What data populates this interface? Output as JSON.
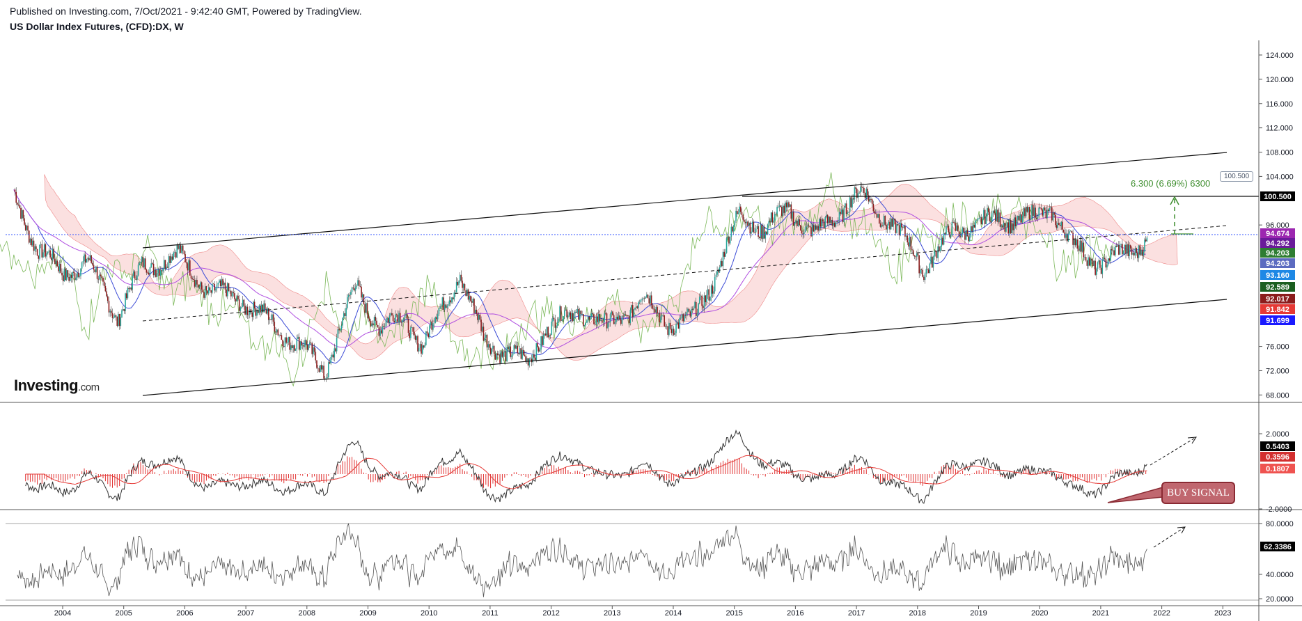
{
  "header": {
    "published": "Published on Investing.com, 7/Oct/2021 - 9:42:40 GMT, Powered by TradingView.",
    "symbol": "US Dollar Index Futures, (CFD):DX, W"
  },
  "logo": {
    "main": "Investing",
    "suffix": ".com"
  },
  "annotations": {
    "buy_signal": "BUY SIGNAL",
    "measure": "6.300 (6.69%) 6300",
    "target_callout": "100.500"
  },
  "colors": {
    "up": "#26a69a",
    "down": "#8b1c1c",
    "grid": "#e0e3eb",
    "kumo_bear": "#f7c6c6",
    "kumo_bull": "#c9e5c3",
    "ma_blue": "#3b4bd6",
    "ma_purple": "#b04ee0",
    "lagging": "#7cb85a",
    "macd_hist": "#e03030"
  },
  "chart_data": [
    {
      "type": "line",
      "title": "US Dollar Index Futures, (CFD):DX, W",
      "x_axis": {
        "ticks": [
          "2004",
          "2005",
          "2006",
          "2007",
          "2008",
          "2009",
          "2010",
          "2011",
          "2012",
          "2013",
          "2014",
          "2015",
          "2016",
          "2017",
          "2018",
          "2019",
          "2020",
          "2021",
          "2022",
          "2023"
        ]
      },
      "y_axis": {
        "ticks": [
          "124.000",
          "120.000",
          "116.000",
          "112.000",
          "108.000",
          "104.000",
          "100.500",
          "96.000",
          "76.000",
          "72.000",
          "68.000"
        ],
        "range": [
          66,
          126
        ]
      },
      "price_labels": [
        {
          "value": "100.500",
          "color": "#000000"
        },
        {
          "value": "94.674",
          "color": "#9c27b0"
        },
        {
          "value": "94.292",
          "color": "#6a1b9a"
        },
        {
          "value": "94.203",
          "color": "#2e7d32"
        },
        {
          "value": "94.203",
          "color": "#5c6bc0"
        },
        {
          "value": "93.160",
          "color": "#1e88e5"
        },
        {
          "value": "92.589",
          "color": "#1b5e20"
        },
        {
          "value": "92.017",
          "color": "#8b1c1c"
        },
        {
          "value": "91.842",
          "color": "#e53935"
        },
        {
          "value": "91.699",
          "color": "#1a1aff"
        }
      ],
      "series": [
        {
          "x": [
            2003.2,
            2003.6,
            2004.0,
            2004.4,
            2004.9,
            2005.3,
            2005.9,
            2006.4,
            2006.9,
            2007.4,
            2007.9,
            2008.3,
            2008.8,
            2009.2,
            2009.6,
            2009.9,
            2010.5,
            2010.9,
            2011.3,
            2011.6,
            2011.9,
            2012.5,
            2012.9,
            2013.5,
            2013.9,
            2014.3,
            2014.7,
            2015.1,
            2015.5,
            2015.9,
            2016.3,
            2016.9,
            2017.1,
            2017.5,
            2017.9,
            2018.1,
            2018.6,
            2018.9,
            2019.4,
            2019.9,
            2020.2,
            2020.5,
            2020.9,
            2021.1,
            2021.5,
            2021.8
          ],
          "close": [
            101,
            92,
            88,
            90,
            81,
            89,
            91,
            85,
            84,
            80,
            76,
            72,
            86,
            79,
            81,
            76,
            88,
            77,
            75,
            73,
            79,
            82,
            79,
            84,
            80,
            80,
            88,
            98,
            95,
            99,
            94,
            100,
            101,
            97,
            92,
            89,
            95,
            96,
            97,
            97,
            99,
            93,
            90,
            90,
            92,
            94
          ]
        }
      ]
    },
    {
      "type": "line",
      "title": "",
      "y_axis": {
        "ticks": [
          "2.0000",
          "-2.0000"
        ]
      },
      "value_labels": [
        {
          "value": "0.5403",
          "color": "#000000"
        },
        {
          "value": "0.3596",
          "color": "#d32f2f"
        },
        {
          "value": "0.1807",
          "color": "#ef5350"
        }
      ]
    },
    {
      "type": "line",
      "title": "",
      "y_axis": {
        "ticks": [
          "80.0000",
          "40.0000",
          "20.0000"
        ]
      },
      "value_labels": [
        {
          "value": "62.3386",
          "color": "#000000"
        }
      ]
    }
  ]
}
